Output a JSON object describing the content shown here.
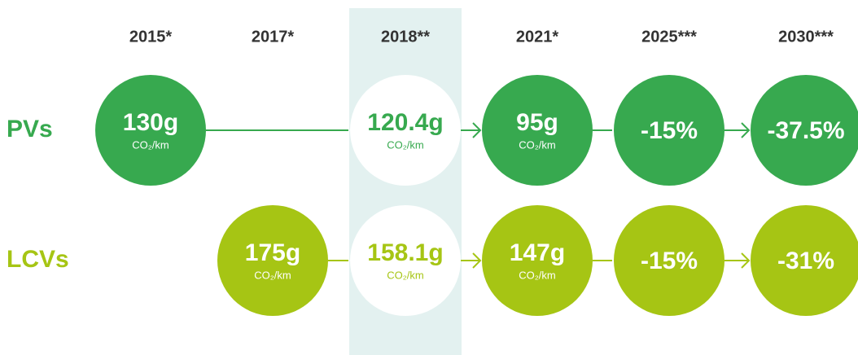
{
  "columns": [
    "2015*",
    "2017*",
    "2018**",
    "2021*",
    "2025***",
    "2030***"
  ],
  "rows": [
    {
      "label": "PVs",
      "color": "#37a94f",
      "cells": [
        {
          "value": "130g",
          "unit": "CO₂/km"
        },
        null,
        {
          "value": "120.4g",
          "unit": "CO₂/km"
        },
        {
          "value": "95g",
          "unit": "CO₂/km"
        },
        {
          "value": "-15%"
        },
        {
          "value": "-37.5%"
        }
      ]
    },
    {
      "label": "LCVs",
      "color": "#a6c514",
      "cells": [
        null,
        {
          "value": "175g",
          "unit": "CO₂/km"
        },
        {
          "value": "158.1g",
          "unit": "CO₂/km"
        },
        {
          "value": "147g",
          "unit": "CO₂/km"
        },
        {
          "value": "-15%"
        },
        {
          "value": "-31%"
        }
      ]
    }
  ]
}
